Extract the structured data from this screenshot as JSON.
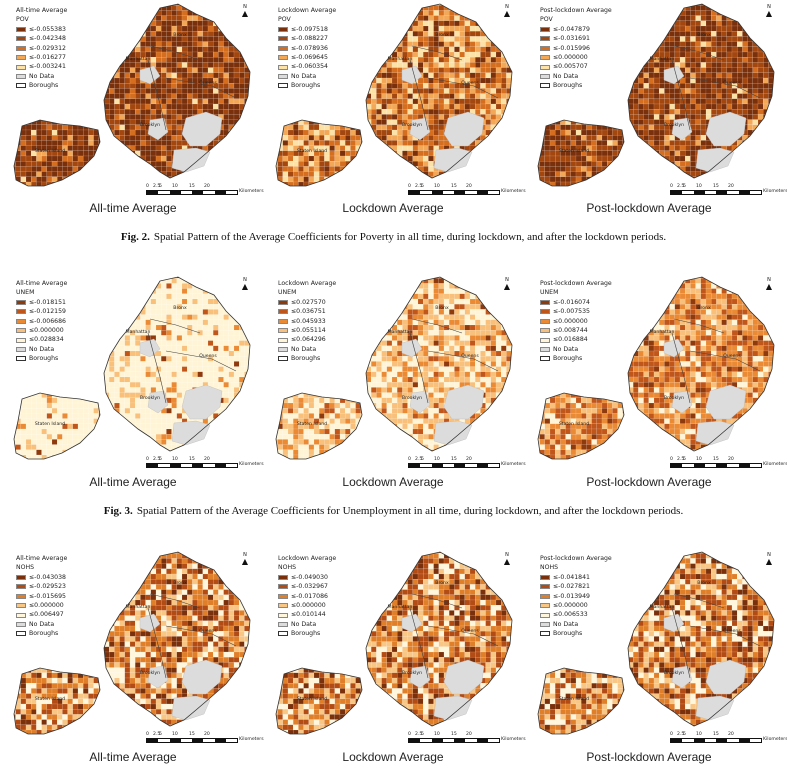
{
  "figures": [
    {
      "caption_label": "Fig. 2.",
      "caption_text": "Spatial Pattern of the Average Coefficients for Poverty in all time, during lockdown, and after the lockdown periods.",
      "panels": [
        {
          "legend_title": "All-time Average",
          "variable": "POV",
          "classes": [
            "≤-0.055383",
            "≤-0.042348",
            "≤-0.029312",
            "≤-0.016277",
            "≤-0.003241"
          ],
          "colors": [
            "#7a300b",
            "#a3470f",
            "#d56e1e",
            "#f3a857",
            "#fde2a8"
          ],
          "mix": [
            0.55,
            0.25,
            0.12,
            0.05,
            0.03
          ],
          "subtitle": "All-time Average"
        },
        {
          "legend_title": "Lockdown Average",
          "variable": "POV",
          "classes": [
            "≤-0.097518",
            "≤-0.088227",
            "≤-0.078936",
            "≤-0.069645",
            "≤-0.060354"
          ],
          "colors": [
            "#7a300b",
            "#a3470f",
            "#d56e1e",
            "#f3a857",
            "#fde2a8"
          ],
          "mix": [
            0.1,
            0.22,
            0.3,
            0.22,
            0.16
          ],
          "subtitle": "Lockdown Average"
        },
        {
          "legend_title": "Post-lockdown Average",
          "variable": "POV",
          "classes": [
            "≤-0.047879",
            "≤-0.031691",
            "≤-0.015996",
            "≤0.000000",
            "≤0.005707"
          ],
          "colors": [
            "#7a300b",
            "#a3470f",
            "#d56e1e",
            "#f3a857",
            "#fde2a8"
          ],
          "mix": [
            0.45,
            0.35,
            0.1,
            0.06,
            0.04
          ],
          "subtitle": "Post-lockdown Average"
        }
      ]
    },
    {
      "caption_label": "Fig. 3.",
      "caption_text": "Spatial Pattern of the Average Coefficients for Unemployment in all time, during lockdown, and after the lockdown periods.",
      "panels": [
        {
          "legend_title": "All-time Average",
          "variable": "UNEM",
          "classes": [
            "≤-0.018151",
            "≤-0.012159",
            "≤-0.006686",
            "≤0.000000",
            "≤0.028834"
          ],
          "colors": [
            "#8f3a0c",
            "#c1561a",
            "#ea8a34",
            "#f8c07a",
            "#fff5d6"
          ],
          "mix": [
            0.02,
            0.03,
            0.05,
            0.15,
            0.75
          ],
          "subtitle": "All-time Average"
        },
        {
          "legend_title": "Lockdown Average",
          "variable": "UNEM",
          "classes": [
            "≤0.027570",
            "≤0.036751",
            "≤0.045933",
            "≤0.055114",
            "≤0.064296"
          ],
          "colors": [
            "#8f3a0c",
            "#c1561a",
            "#ea8a34",
            "#f8c07a",
            "#fff5d6"
          ],
          "mix": [
            0.03,
            0.07,
            0.2,
            0.35,
            0.35
          ],
          "subtitle": "Lockdown Average"
        },
        {
          "legend_title": "Post-lockdown Average",
          "variable": "UNEM",
          "classes": [
            "≤-0.016074",
            "≤-0.007535",
            "≤0.000000",
            "≤0.008744",
            "≤0.016884"
          ],
          "colors": [
            "#8f3a0c",
            "#c1561a",
            "#ea8a34",
            "#f8c07a",
            "#fff5d6"
          ],
          "mix": [
            0.05,
            0.3,
            0.35,
            0.2,
            0.1
          ],
          "subtitle": "Post-lockdown Average"
        }
      ]
    },
    {
      "caption_label": "",
      "caption_text": "",
      "panels": [
        {
          "legend_title": "All-time Average",
          "variable": "NOHS",
          "classes": [
            "≤-0.043038",
            "≤-0.029523",
            "≤-0.015695",
            "≤0.000000",
            "≤0.006497"
          ],
          "colors": [
            "#7a300b",
            "#b34c14",
            "#e07f2a",
            "#f8c685",
            "#fff6dc"
          ],
          "mix": [
            0.12,
            0.25,
            0.28,
            0.2,
            0.15
          ],
          "subtitle": "All-time Average"
        },
        {
          "legend_title": "Lockdown Average",
          "variable": "NOHS",
          "classes": [
            "≤-0.049030",
            "≤-0.032967",
            "≤-0.017086",
            "≤0.000000",
            "≤0.010144"
          ],
          "colors": [
            "#7a300b",
            "#b34c14",
            "#e07f2a",
            "#f8c685",
            "#fff6dc"
          ],
          "mix": [
            0.12,
            0.25,
            0.28,
            0.2,
            0.15
          ],
          "subtitle": "Lockdown Average"
        },
        {
          "legend_title": "Post-lockdown Average",
          "variable": "NOHS",
          "classes": [
            "≤-0.041841",
            "≤-0.027821",
            "≤-0.013949",
            "≤0.000000",
            "≤0.006533"
          ],
          "colors": [
            "#7a300b",
            "#b34c14",
            "#e07f2a",
            "#f8c685",
            "#fff6dc"
          ],
          "mix": [
            0.14,
            0.25,
            0.26,
            0.2,
            0.15
          ],
          "subtitle": "Post-lockdown Average"
        }
      ]
    }
  ],
  "legend_extra": {
    "no_data": "No Data",
    "boroughs": "Boroughs",
    "no_data_color": "#dcdcdc"
  },
  "map_labels": {
    "bronx": "Bronx",
    "manhattan": "Manhattan",
    "queens": "Queens",
    "brooklyn": "Brooklyn",
    "staten": "Staten Island"
  },
  "north_label": "N",
  "scale": {
    "ticks": [
      "0",
      "2.5",
      "5",
      "10",
      "15",
      "20"
    ],
    "unit": "Kilometers"
  }
}
